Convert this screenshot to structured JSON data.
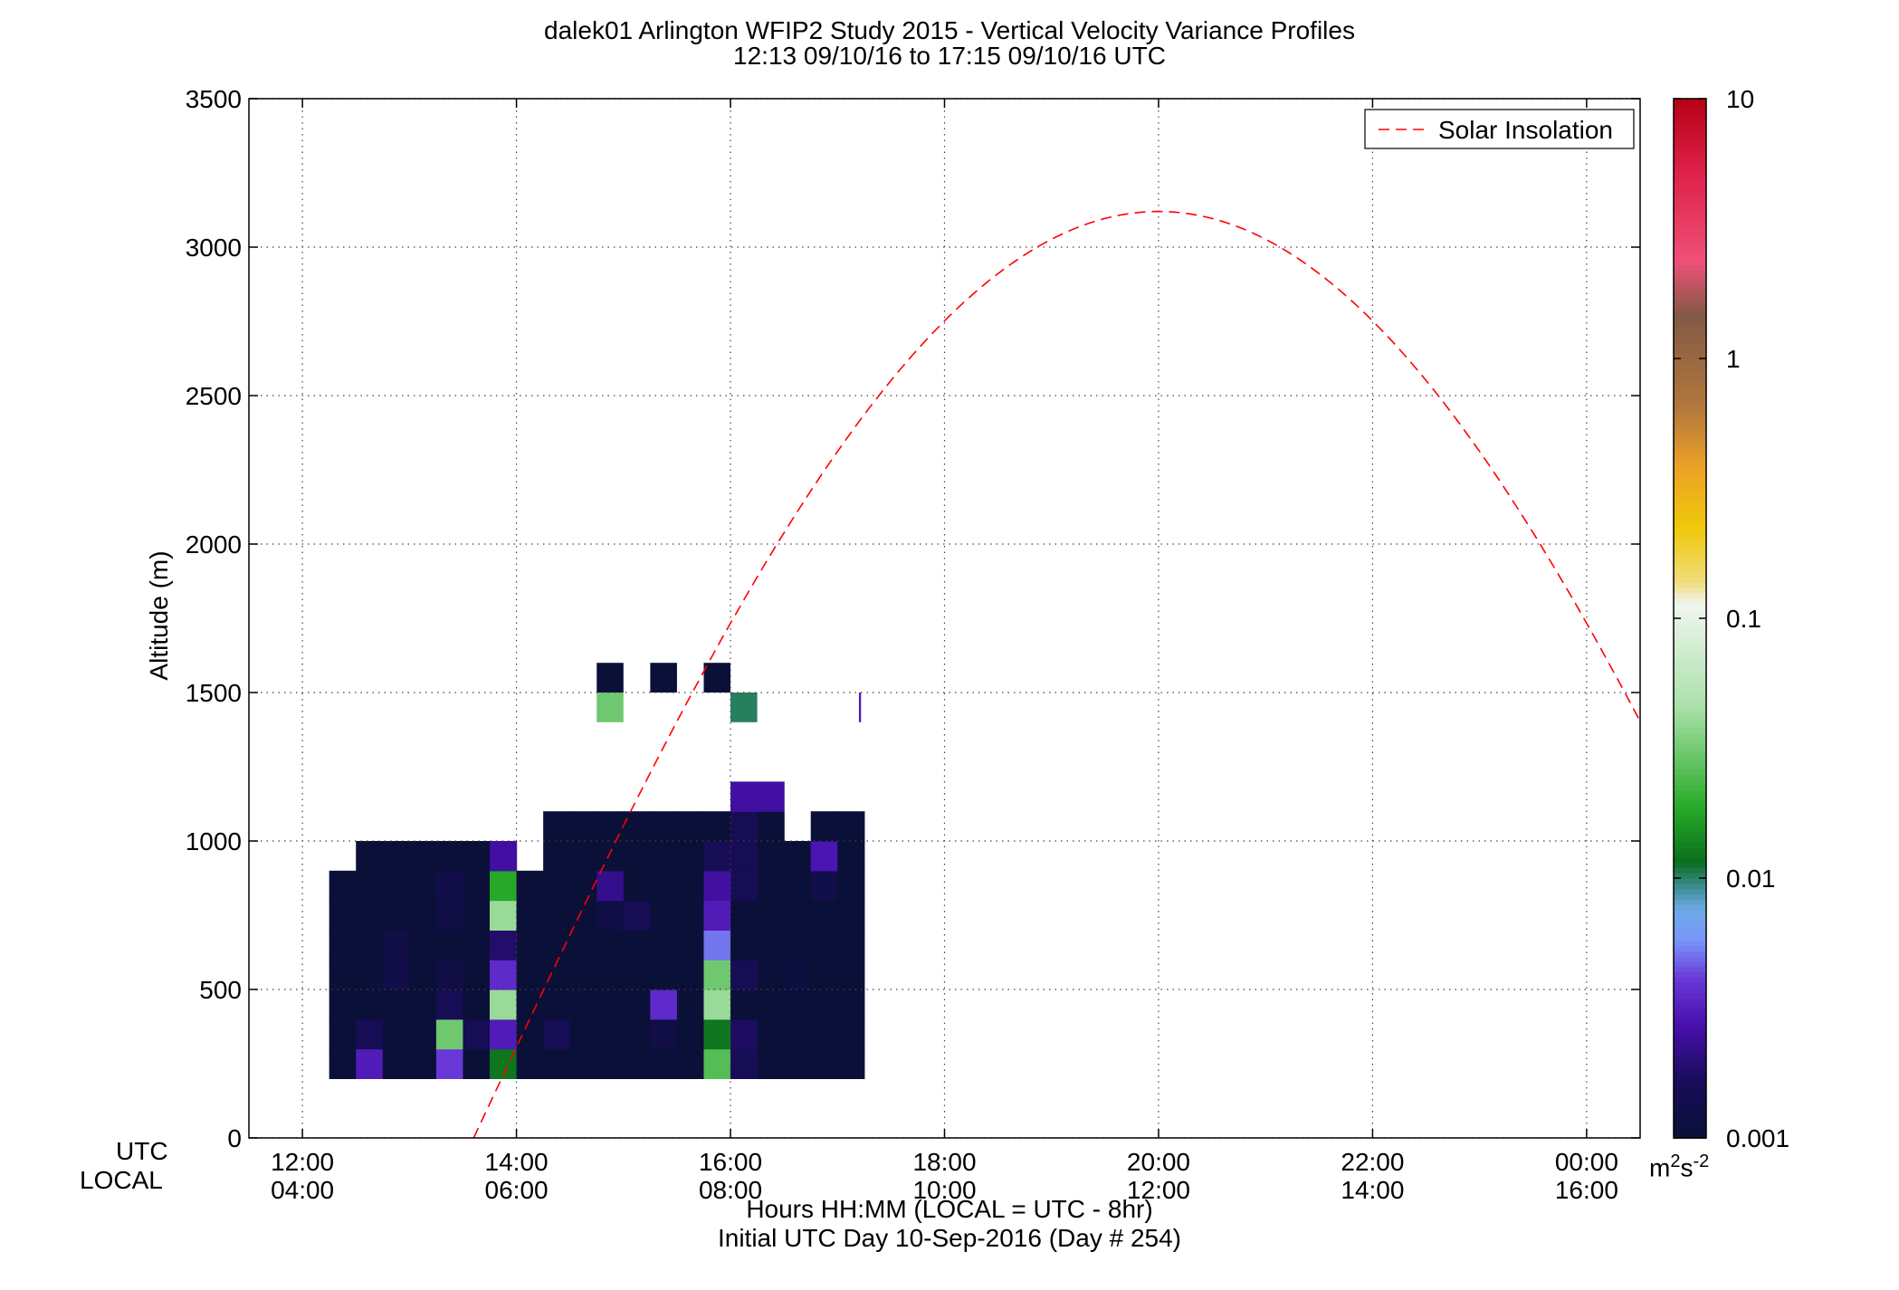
{
  "title": {
    "line1": "dalek01 Arlington WFIP2 Study 2015 - Vertical Velocity Variance Profiles",
    "line2": "12:13 09/10/16 to 17:15 09/10/16  UTC"
  },
  "axes": {
    "ylabel": "Altitude (m)",
    "xlabel": "Hours HH:MM  (LOCAL = UTC - 8hr)",
    "subxlabel": "Initial UTC Day 10-Sep-2016 (Day # 254)",
    "row_label_utc": "UTC",
    "row_label_local": "LOCAL"
  },
  "colorbar": {
    "scale": "log",
    "range": [
      0.001,
      10
    ],
    "tick_labels": [
      "10",
      "1",
      "0.1",
      "0.01",
      "0.001"
    ],
    "unit_base": "m",
    "unit_sup1": "2",
    "unit_mid": "s",
    "unit_sup2": "-2"
  },
  "chart_data": {
    "type": "heatmap",
    "title": "dalek01 Arlington WFIP2 Study 2015 - Vertical Velocity Variance Profiles",
    "subtitle": "12:13 09/10/16 to 17:15 09/10/16  UTC",
    "xlabel": "Hours HH:MM  (LOCAL = UTC - 8hr)",
    "ylabel": "Altitude (m)",
    "xlim_hours_utc": [
      11.5,
      24.5
    ],
    "ylim": [
      0,
      3500
    ],
    "yticks": [
      0,
      500,
      1000,
      1500,
      2000,
      2500,
      3000,
      3500
    ],
    "xticks_hours_utc": [
      12,
      14,
      16,
      18,
      20,
      22,
      24
    ],
    "xtick_labels_utc": [
      "12:00",
      "14:00",
      "16:00",
      "18:00",
      "20:00",
      "22:00",
      "00:00"
    ],
    "xtick_labels_local": [
      "04:00",
      "06:00",
      "08:00",
      "10:00",
      "12:00",
      "14:00",
      "16:00"
    ],
    "grid": true,
    "legend": {
      "position": "top-right",
      "entries": [
        "Solar Insolation"
      ]
    },
    "bin_width_hours": 0.25,
    "bin_height_m": 100,
    "default_value": 0.001,
    "columns": [
      {
        "start_h": 12.25,
        "top_m": 900,
        "overrides": [
          [
            200,
            0.001
          ]
        ]
      },
      {
        "start_h": 12.5,
        "top_m": 1000,
        "overrides": [
          [
            200,
            0.003
          ],
          [
            300,
            0.0015
          ]
        ]
      },
      {
        "start_h": 12.75,
        "top_m": 1000,
        "overrides": [
          [
            500,
            0.0013
          ],
          [
            600,
            0.0012
          ]
        ]
      },
      {
        "start_h": 13.0,
        "top_m": 1000,
        "overrides": []
      },
      {
        "start_h": 13.25,
        "top_m": 1000,
        "overrides": [
          [
            200,
            0.004
          ],
          [
            300,
            0.03
          ],
          [
            400,
            0.0015
          ],
          [
            500,
            0.0012
          ],
          [
            700,
            0.0012
          ],
          [
            800,
            0.0013
          ]
        ]
      },
      {
        "start_h": 13.5,
        "top_m": 1000,
        "overrides": [
          [
            300,
            0.0015
          ]
        ]
      },
      {
        "start_h": 13.75,
        "top_m": 1000,
        "overrides": [
          [
            200,
            0.012
          ],
          [
            300,
            0.003
          ],
          [
            400,
            0.04
          ],
          [
            500,
            0.0035
          ],
          [
            600,
            0.0018
          ],
          [
            700,
            0.04
          ],
          [
            800,
            0.018
          ],
          [
            900,
            0.0025
          ]
        ]
      },
      {
        "start_h": 14.0,
        "top_m": 900,
        "overrides": []
      },
      {
        "start_h": 14.25,
        "top_m": 1100,
        "overrides": [
          [
            300,
            0.0015
          ]
        ]
      },
      {
        "start_h": 14.5,
        "top_m": 1100,
        "overrides": []
      },
      {
        "start_h": 14.75,
        "top_m": 1100,
        "overrides": [
          [
            700,
            0.0012
          ],
          [
            800,
            0.0022
          ]
        ]
      },
      {
        "start_h": 15.0,
        "top_m": 1100,
        "overrides": [
          [
            700,
            0.0015
          ]
        ]
      },
      {
        "start_h": 15.25,
        "top_m": 1100,
        "overrides": [
          [
            300,
            0.0012
          ],
          [
            400,
            0.0035
          ]
        ]
      },
      {
        "start_h": 15.5,
        "top_m": 1100,
        "overrides": []
      },
      {
        "start_h": 15.75,
        "top_m": 1100,
        "overrides": [
          [
            200,
            0.025
          ],
          [
            300,
            0.012
          ],
          [
            400,
            0.04
          ],
          [
            500,
            0.03
          ],
          [
            600,
            0.005
          ],
          [
            700,
            0.003
          ],
          [
            800,
            0.0025
          ],
          [
            900,
            0.0015
          ]
        ]
      },
      {
        "start_h": 16.0,
        "top_m": 1200,
        "overrides": [
          [
            200,
            0.0015
          ],
          [
            300,
            0.0017
          ],
          [
            500,
            0.0015
          ],
          [
            800,
            0.0015
          ],
          [
            900,
            0.0015
          ],
          [
            1000,
            0.0015
          ],
          [
            1100,
            0.0025
          ]
        ]
      },
      {
        "start_h": 16.25,
        "top_m": 1200,
        "overrides": [
          [
            1100,
            0.0025
          ]
        ]
      },
      {
        "start_h": 16.5,
        "top_m": 1000,
        "overrides": [
          [
            500,
            0.0011
          ]
        ]
      },
      {
        "start_h": 16.75,
        "top_m": 1100,
        "overrides": [
          [
            800,
            0.0013
          ],
          [
            900,
            0.0028
          ]
        ]
      },
      {
        "start_h": 17.0,
        "top_m": 1100,
        "overrides": []
      }
    ],
    "isolated_cells": [
      {
        "start_h": 14.75,
        "bottom_m": 1500,
        "value": 0.001
      },
      {
        "start_h": 14.75,
        "bottom_m": 1400,
        "value": 0.03
      },
      {
        "start_h": 15.25,
        "bottom_m": 1500,
        "value": 0.001
      },
      {
        "start_h": 15.75,
        "bottom_m": 1500,
        "value": 0.001
      },
      {
        "start_h": 16.0,
        "bottom_m": 1400,
        "value": 0.01
      },
      {
        "start_h": 17.2,
        "bottom_m": 1400,
        "value": 0.003,
        "width_h": 0.02
      }
    ],
    "solar_insolation": {
      "name": "Solar Insolation",
      "color": "#ff0000",
      "style": "dashed",
      "peak_hour_utc": 20.0,
      "peak_altitude_m": 3120,
      "zero_hour_utc": 13.6,
      "curve": "sin",
      "x_end_h": 24.5
    }
  }
}
